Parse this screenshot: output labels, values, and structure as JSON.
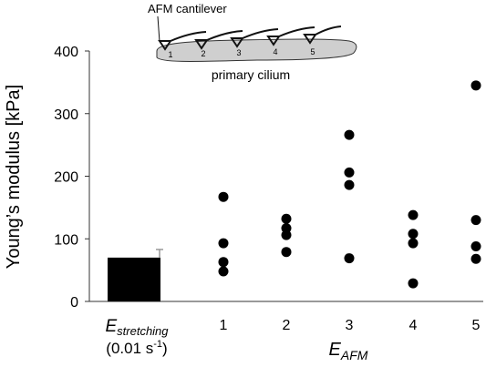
{
  "chart_data": {
    "type": "scatter",
    "ylabel": "Young’s modulus [kPa]",
    "ylim": [
      0,
      400
    ],
    "yticks": [
      0,
      100,
      200,
      300,
      400
    ],
    "grid": false,
    "categories": [
      "1",
      "2",
      "3",
      "4",
      "5"
    ],
    "xlabel_main": "E",
    "xlabel_sub": "AFM",
    "bar": {
      "label_main": "E",
      "label_sub": "stretching",
      "label_rate_pre": "(0.01 s",
      "label_rate_sup": "-1",
      "label_rate_post": ")",
      "value": 70,
      "error": 13
    },
    "points": [
      [
        167,
        93,
        63,
        48
      ],
      [
        132,
        117,
        106,
        79
      ],
      [
        266,
        206,
        186,
        69
      ],
      [
        138,
        108,
        93,
        29
      ],
      [
        345,
        130,
        88,
        68
      ]
    ],
    "inset": {
      "title": "AFM cantilever",
      "caption": "primary cilium",
      "positions": [
        "1",
        "2",
        "3",
        "4",
        "5"
      ]
    }
  },
  "colors": {
    "marker": "#000000",
    "bar": "#000000",
    "error_bar": "#999999",
    "cilium_fill": "#cfcfcf",
    "axis": "#333333"
  }
}
